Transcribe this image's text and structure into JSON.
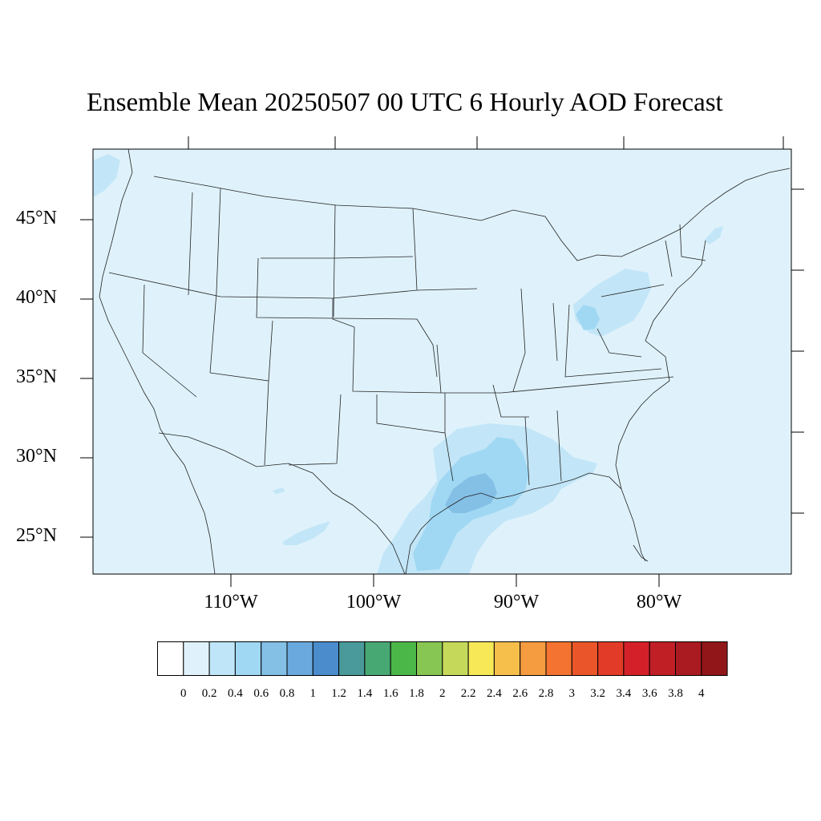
{
  "title": "Ensemble Mean 20250507 00 UTC 6 Hourly AOD Forecast",
  "latitude_labels": [
    "45°N",
    "40°N",
    "35°N",
    "30°N",
    "25°N"
  ],
  "longitude_labels": [
    "110°W",
    "100°W",
    "90°W",
    "80°W"
  ],
  "colorbar": {
    "labels": [
      "0",
      "0.2",
      "0.4",
      "0.6",
      "0.8",
      "1",
      "1.2",
      "1.4",
      "1.6",
      "1.8",
      "2",
      "2.2",
      "2.4",
      "2.6",
      "2.8",
      "3",
      "3.2",
      "3.4",
      "3.6",
      "3.8",
      "4"
    ],
    "colors": [
      "#ffffff",
      "#dff2fb",
      "#bfe6f8",
      "#a0d8f3",
      "#84bfe6",
      "#6aa9dd",
      "#4a8ccc",
      "#4a9a9c",
      "#48a874",
      "#4bb748",
      "#88c653",
      "#c6d85a",
      "#f7e858",
      "#f6bf4c",
      "#f59b40",
      "#f47330",
      "#ea562a",
      "#e23b27",
      "#d42129",
      "#c01f26",
      "#aa1b21",
      "#901619"
    ]
  },
  "map": {
    "background_color": "#dff2fb",
    "plume_colors": {
      "light": "#c2e6f7",
      "medium": "#a0d8f3",
      "dark": "#84bfe6"
    }
  }
}
